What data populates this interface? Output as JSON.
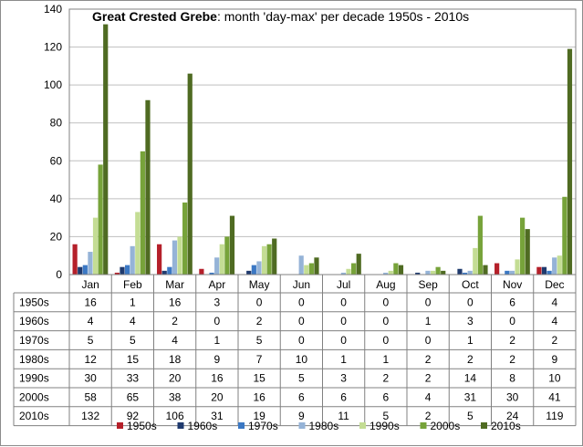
{
  "chart_data": {
    "type": "bar",
    "title_bold": "Great Crested Grebe",
    "title_rest": ": month 'day-max' per decade 1950s - 2010s",
    "categories": [
      "Jan",
      "Feb",
      "Mar",
      "Apr",
      "May",
      "Jun",
      "Jul",
      "Aug",
      "Sep",
      "Oct",
      "Nov",
      "Dec"
    ],
    "ylim": [
      0,
      140
    ],
    "yticks": [
      0,
      20,
      40,
      60,
      80,
      100,
      120,
      140
    ],
    "grid": true,
    "legend_placement": "bottom",
    "series": [
      {
        "name": "1950s",
        "color": "#b5202a",
        "values": [
          16,
          1,
          16,
          3,
          0,
          0,
          0,
          0,
          0,
          0,
          6,
          4
        ]
      },
      {
        "name": "1960s",
        "color": "#1f3a6e",
        "values": [
          4,
          4,
          2,
          0,
          2,
          0,
          0,
          0,
          1,
          3,
          0,
          4
        ]
      },
      {
        "name": "1970s",
        "color": "#3b78c4",
        "values": [
          5,
          5,
          4,
          1,
          5,
          0,
          0,
          0,
          0,
          1,
          2,
          2
        ]
      },
      {
        "name": "1980s",
        "color": "#95b3d7",
        "values": [
          12,
          15,
          18,
          9,
          7,
          10,
          1,
          1,
          2,
          2,
          2,
          9
        ]
      },
      {
        "name": "1990s",
        "color": "#c4dd94",
        "values": [
          30,
          33,
          20,
          16,
          15,
          5,
          3,
          2,
          2,
          14,
          8,
          10
        ]
      },
      {
        "name": "2000s",
        "color": "#77a33a",
        "values": [
          58,
          65,
          38,
          20,
          16,
          6,
          6,
          6,
          4,
          31,
          30,
          41
        ]
      },
      {
        "name": "2010s",
        "color": "#4f6b22",
        "values": [
          132,
          92,
          106,
          31,
          19,
          9,
          11,
          5,
          2,
          5,
          24,
          119
        ]
      }
    ]
  }
}
